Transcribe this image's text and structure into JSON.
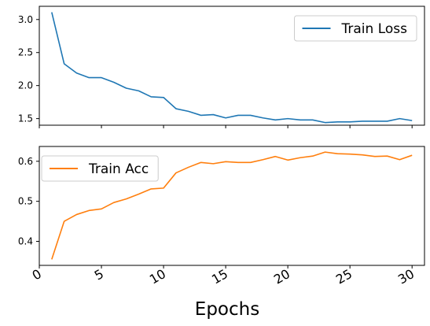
{
  "chart_data": [
    {
      "type": "line",
      "x": [
        1,
        2,
        3,
        4,
        5,
        6,
        7,
        8,
        9,
        10,
        11,
        12,
        13,
        14,
        15,
        16,
        17,
        18,
        19,
        20,
        21,
        22,
        23,
        24,
        25,
        26,
        27,
        28,
        29,
        30
      ],
      "series": [
        {
          "name": "Train Loss",
          "color": "#1f77b4",
          "values": [
            3.11,
            2.33,
            2.19,
            2.12,
            2.12,
            2.05,
            1.96,
            1.92,
            1.83,
            1.82,
            1.65,
            1.61,
            1.55,
            1.56,
            1.51,
            1.55,
            1.55,
            1.51,
            1.48,
            1.5,
            1.48,
            1.48,
            1.44,
            1.45,
            1.45,
            1.46,
            1.46,
            1.46,
            1.5,
            1.47
          ]
        }
      ],
      "xlim": [
        0,
        31
      ],
      "ylim": [
        1.4,
        3.2
      ],
      "yticks": [
        1.5,
        2.0,
        2.5,
        3.0
      ],
      "ytick_labels": [
        "1.5",
        "2.0",
        "2.5",
        "3.0"
      ],
      "legend_position": "upper right",
      "grid": false
    },
    {
      "type": "line",
      "x": [
        1,
        2,
        3,
        4,
        5,
        6,
        7,
        8,
        9,
        10,
        11,
        12,
        13,
        14,
        15,
        16,
        17,
        18,
        19,
        20,
        21,
        22,
        23,
        24,
        25,
        26,
        27,
        28,
        29,
        30
      ],
      "series": [
        {
          "name": "Train Acc",
          "color": "#ff7f0e",
          "values": [
            0.355,
            0.45,
            0.467,
            0.477,
            0.481,
            0.497,
            0.506,
            0.518,
            0.531,
            0.533,
            0.571,
            0.585,
            0.597,
            0.594,
            0.599,
            0.597,
            0.597,
            0.604,
            0.612,
            0.603,
            0.609,
            0.613,
            0.623,
            0.619,
            0.618,
            0.616,
            0.612,
            0.613,
            0.604,
            0.615
          ]
        }
      ],
      "xlim": [
        0,
        31
      ],
      "ylim": [
        0.34,
        0.637
      ],
      "yticks": [
        0.4,
        0.5,
        0.6
      ],
      "ytick_labels": [
        "0.4",
        "0.5",
        "0.6"
      ],
      "xticks": [
        0,
        5,
        10,
        15,
        20,
        25,
        30
      ],
      "xtick_labels": [
        "0",
        "5",
        "10",
        "15",
        "20",
        "25",
        "30"
      ],
      "xlabel": "Epochs",
      "legend_position": "upper left",
      "grid": false
    }
  ]
}
